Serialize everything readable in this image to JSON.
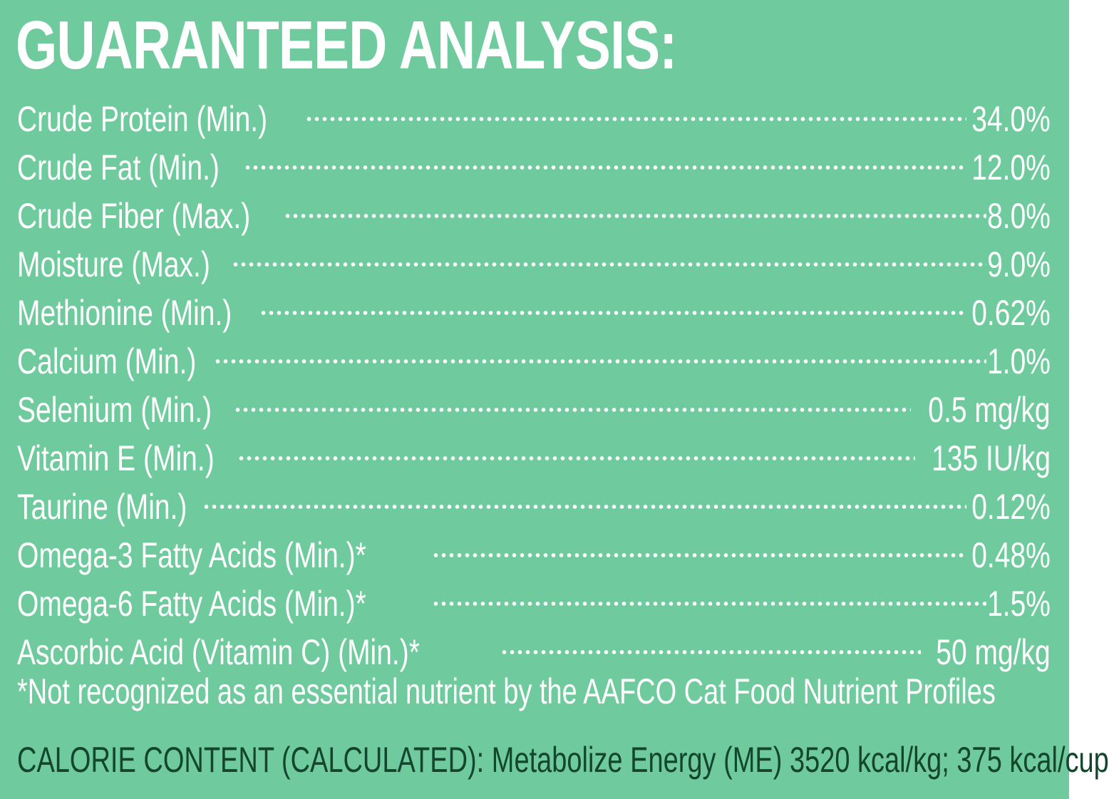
{
  "heading": "GUARANTEED ANALYSIS:",
  "rows": [
    {
      "label": "Crude Protein (Min.)",
      "value": "34.0%"
    },
    {
      "label": "Crude Fat (Min.)",
      "value": "12.0%"
    },
    {
      "label": "Crude Fiber (Max.)",
      "value": "8.0%"
    },
    {
      "label": "Moisture (Max.)",
      "value": "9.0%"
    },
    {
      "label": "Methionine (Min.)",
      "value": "0.62%"
    },
    {
      "label": "Calcium (Min.)",
      "value": "1.0%"
    },
    {
      "label": "Selenium (Min.)",
      "value": "0.5 mg/kg"
    },
    {
      "label": "Vitamin E (Min.)",
      "value": "135 IU/kg"
    },
    {
      "label": "Taurine (Min.)",
      "value": "0.12%"
    },
    {
      "label": "Omega-3 Fatty Acids (Min.)*",
      "value": "0.48%"
    },
    {
      "label": "Omega-6 Fatty Acids (Min.)*",
      "value": "1.5%"
    },
    {
      "label": "Ascorbic Acid (Vitamin C) (Min.)*",
      "value": "50 mg/kg"
    }
  ],
  "footnote": "*Not recognized as an essential nutrient by the AAFCO Cat Food Nutrient Profiles",
  "calorie_content": "CALORIE CONTENT (CALCULATED): Metabolize Energy (ME) 3520 kcal/kg; 375 kcal/cup",
  "colors": {
    "background": "#6fcb9d",
    "text": "#ffffff",
    "calorie_text": "#14462e"
  }
}
